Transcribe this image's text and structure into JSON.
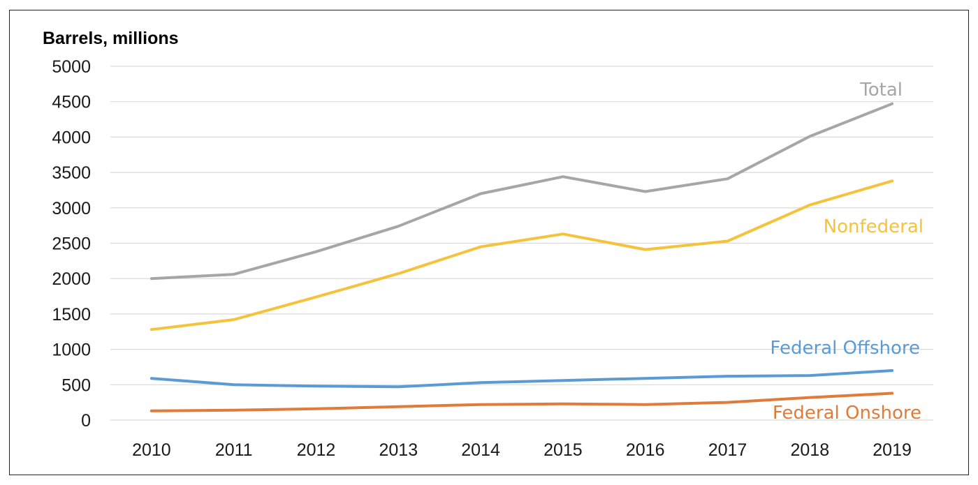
{
  "chart_data": {
    "type": "line",
    "ylabel": "Barrels, millions",
    "xlabel": "",
    "ylim": [
      0,
      5000
    ],
    "yticks": [
      0,
      500,
      1000,
      1500,
      2000,
      2500,
      3000,
      3500,
      4000,
      4500,
      5000
    ],
    "categories": [
      "2010",
      "2011",
      "2012",
      "2013",
      "2014",
      "2015",
      "2016",
      "2017",
      "2018",
      "2019"
    ],
    "grid": "horizontal",
    "legend": "direct labels at right end of lines",
    "series": [
      {
        "name": "Total",
        "color": "#a6a6a6",
        "values": [
          2000,
          2060,
          2380,
          2740,
          3200,
          3440,
          3230,
          3410,
          4010,
          4470
        ]
      },
      {
        "name": "Nonfederal",
        "color": "#f5c33b",
        "values": [
          1280,
          1420,
          1740,
          2070,
          2450,
          2630,
          2410,
          2530,
          3040,
          3380
        ]
      },
      {
        "name": "Federal Offshore",
        "color": "#5b9bd5",
        "values": [
          590,
          500,
          480,
          470,
          530,
          560,
          590,
          620,
          630,
          700
        ]
      },
      {
        "name": "Federal Onshore",
        "color": "#e07b39",
        "values": [
          130,
          140,
          160,
          190,
          220,
          230,
          220,
          250,
          320,
          380
        ]
      }
    ]
  }
}
